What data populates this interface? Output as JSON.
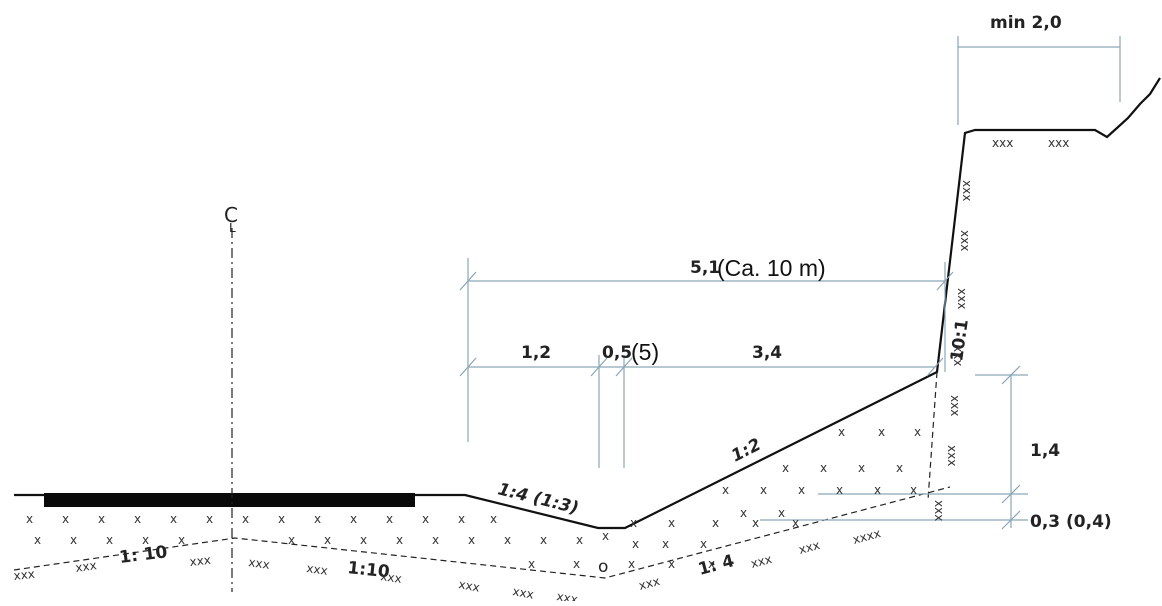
{
  "labels": {
    "min_top": "min 2,0",
    "centerline": "C",
    "centerline_sub": "L",
    "overall_width": "5,1",
    "overall_width_alt": "(Ca. 10 m)",
    "dim_1_2": "1,2",
    "dim_0_5": "0,5",
    "dim_0_5_alt": "(5)",
    "dim_3_4": "3,4",
    "rock_slope": "10:1",
    "height_1_4": "1,4",
    "depth": "0,3 (0,4)",
    "slope_1_4_ditch": "1:4 (1:3)",
    "slope_1_2": "1:2",
    "base_1_10_left": "1: 10",
    "base_1_10_mid": "1:10",
    "base_1_4": "1: 4",
    "drain_symbol": "o"
  },
  "fill_marks": {
    "x": "x",
    "xxx": "xxx",
    "xxxx": "xxxx"
  }
}
